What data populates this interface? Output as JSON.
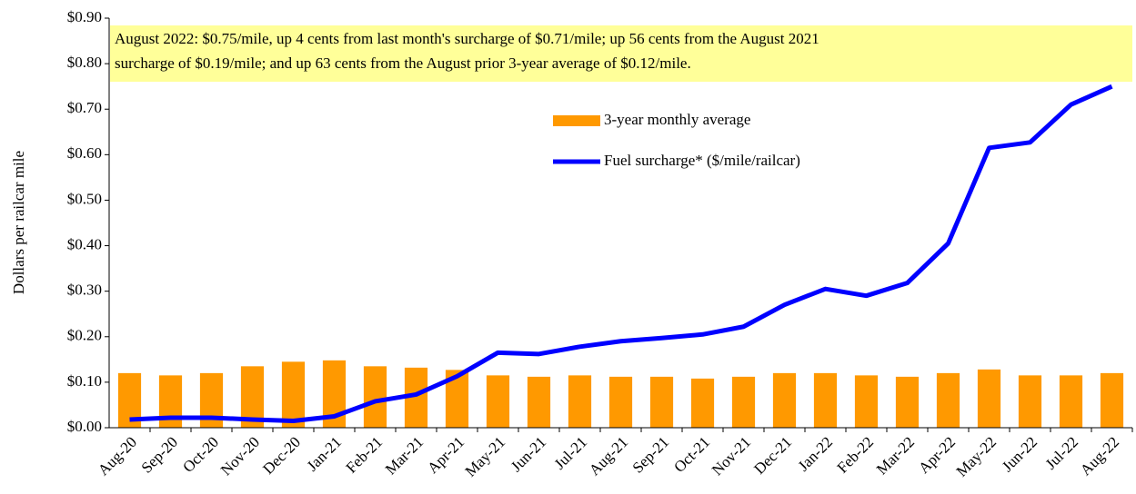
{
  "chart_data": {
    "type": "bar",
    "annotation": [
      "August 2022: $0.75/mile,  up 4 cents from last month's surcharge of $0.71/mile;  up 56 cents from the August 2021",
      "surcharge  of $0.19/mile;  and up 63 cents from the August prior 3-year average  of  $0.12/mile."
    ],
    "y_label": "Dollars per railcar mile",
    "categories": [
      "Aug-20",
      "Sep-20",
      "Oct-20",
      "Nov-20",
      "Dec-20",
      "Jan-21",
      "Feb-21",
      "Mar-21",
      "Apr-21",
      "May-21",
      "Jun-21",
      "Jul-21",
      "Aug-21",
      "Sep-21",
      "Oct-21",
      "Nov-21",
      "Dec-21",
      "Jan-22",
      "Feb-22",
      "Mar-22",
      "Apr-22",
      "May-22",
      "Jun-22",
      "Jul-22",
      "Aug-22"
    ],
    "series": [
      {
        "name": "3-year monthly average",
        "type": "bar",
        "color": "#ff9900",
        "values": [
          0.12,
          0.115,
          0.12,
          0.135,
          0.145,
          0.148,
          0.135,
          0.132,
          0.127,
          0.115,
          0.112,
          0.115,
          0.112,
          0.112,
          0.108,
          0.112,
          0.12,
          0.12,
          0.115,
          0.112,
          0.12,
          0.128,
          0.115,
          0.115,
          0.12
        ]
      },
      {
        "name": "Fuel surcharge* ($/mile/railcar)",
        "type": "line",
        "color": "#0000ff",
        "values": [
          0.018,
          0.022,
          0.022,
          0.018,
          0.015,
          0.025,
          0.058,
          0.073,
          0.113,
          0.165,
          0.162,
          0.178,
          0.19,
          0.197,
          0.205,
          0.222,
          0.27,
          0.305,
          0.29,
          0.318,
          0.405,
          0.615,
          0.627,
          0.71,
          0.75
        ]
      }
    ],
    "ylim": [
      0,
      0.9
    ],
    "yticks": [
      {
        "value": 0,
        "label": "$0.00"
      },
      {
        "value": 0.1,
        "label": "$0.10"
      },
      {
        "value": 0.2,
        "label": "$0.20"
      },
      {
        "value": 0.3,
        "label": "$0.30"
      },
      {
        "value": 0.4,
        "label": "$0.40"
      },
      {
        "value": 0.5,
        "label": "$0.50"
      },
      {
        "value": 0.6,
        "label": "$0.60"
      },
      {
        "value": 0.7,
        "label": "$0.70"
      },
      {
        "value": 0.8,
        "label": "$0.80"
      },
      {
        "value": 0.9,
        "label": "$0.90"
      }
    ]
  }
}
